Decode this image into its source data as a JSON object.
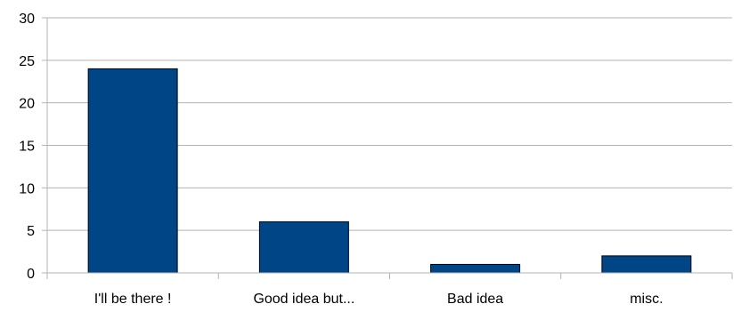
{
  "chart_data": {
    "type": "bar",
    "title": "",
    "xlabel": "",
    "ylabel": "",
    "categories": [
      "I'll be there !",
      "Good idea but...",
      "Bad idea",
      "misc."
    ],
    "values": [
      24,
      6,
      1,
      2
    ],
    "ylim": [
      0,
      30
    ],
    "yticks": [
      0,
      5,
      10,
      15,
      20,
      25,
      30
    ],
    "grid": true,
    "legend": "none",
    "colors": {
      "bar_fill": "#004586",
      "bar_stroke": "#000000",
      "grid": "#b3b3b3",
      "axis": "#b3b3b3"
    }
  }
}
